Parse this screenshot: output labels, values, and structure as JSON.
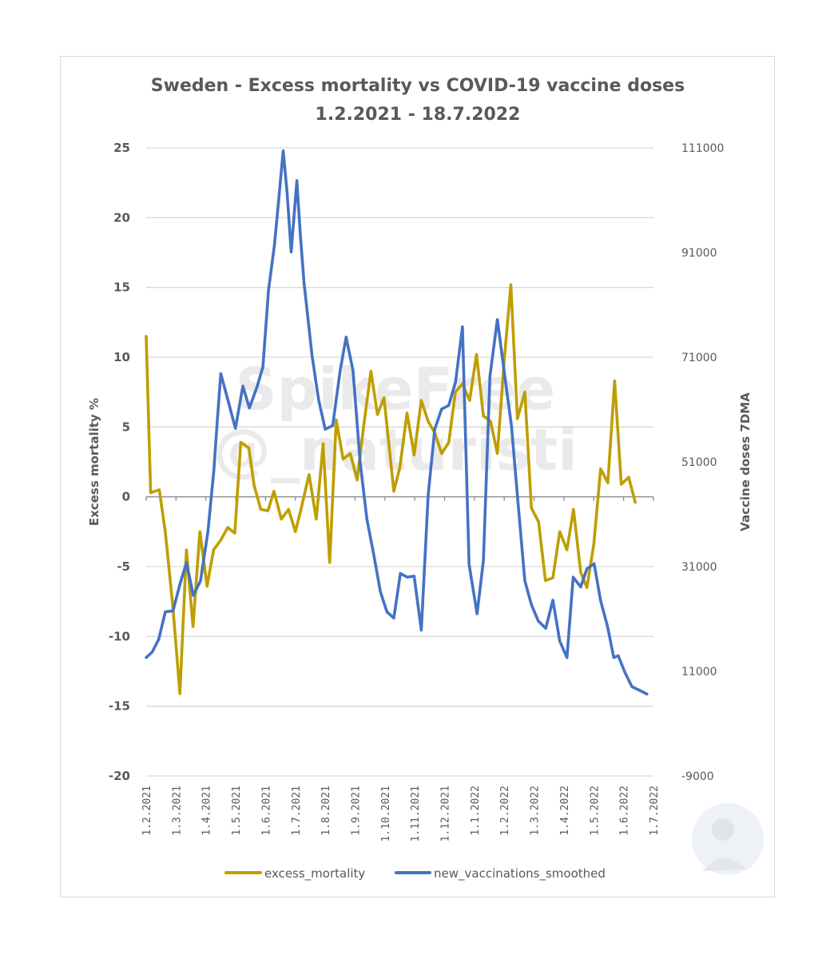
{
  "chart_data": {
    "type": "line",
    "title": [
      "Sweden - Excess mortality vs  COVID-19 vaccine doses",
      "1.2.2021 - 18.7.2022"
    ],
    "xlabel": "",
    "x_unit": "months since 1.2.2021",
    "xlim": [
      0,
      17
    ],
    "x_tick_labels": [
      "1.2.2021",
      "1.3.2021",
      "1.4.2021",
      "1.5.2021",
      "1.6.2021",
      "1.7.2021",
      "1.8.2021",
      "1.9.2021",
      "1.10.2021",
      "1.11.2021",
      "1.12.2021",
      "1.1.2022",
      "1.2.2022",
      "1.3.2022",
      "1.4.2022",
      "1.5.2022",
      "1.6.2022",
      "1.7.2022"
    ],
    "ylabel_left": "Excess mortality %",
    "ylim_left": [
      -20,
      25
    ],
    "y_ticks_left": [
      "25",
      "20",
      "15",
      "10",
      "5",
      "0",
      "-5",
      "-10",
      "-15",
      "-20"
    ],
    "ylabel_right": "Vaccine doses 7DMA",
    "ylim_right": [
      -9000,
      111000
    ],
    "y_ticks_right": [
      "111000",
      "91000",
      "71000",
      "51000",
      "31000",
      "11000",
      "-9000"
    ],
    "grid": true,
    "legend_position": "bottom",
    "watermark": [
      "SpikeFree",
      "@_naturisti"
    ],
    "colors": {
      "excess_mortality": "#BF9E00",
      "new_vaccinations_smoothed": "#4472C4"
    },
    "series": [
      {
        "name": "excess_mortality",
        "axis": "left",
        "x": [
          0,
          0.15,
          0.44,
          0.64,
          0.9,
          1.13,
          1.35,
          1.57,
          1.8,
          2.04,
          2.26,
          2.5,
          2.73,
          2.97,
          3.17,
          3.44,
          3.62,
          3.84,
          4.08,
          4.28,
          4.53,
          4.77,
          5.0,
          5.2,
          5.46,
          5.7,
          5.93,
          6.15,
          6.37,
          6.6,
          6.84,
          7.07,
          7.29,
          7.53,
          7.75,
          7.97,
          8.3,
          8.5,
          8.74,
          8.98,
          9.22,
          9.45,
          9.67,
          9.9,
          10.14,
          10.36,
          10.6,
          10.84,
          11.07,
          11.3,
          11.54,
          11.77,
          12.0,
          12.22,
          12.44,
          12.69,
          12.91,
          13.15,
          13.38,
          13.63,
          13.86,
          14.1,
          14.32,
          14.56,
          14.77,
          15.0,
          15.23,
          15.47,
          15.7,
          15.92,
          16.17,
          16.39
        ],
        "values": [
          11.5,
          0.3,
          0.5,
          -2.5,
          -8,
          -14.1,
          -3.8,
          -9.3,
          -2.5,
          -6.4,
          -3.8,
          -3.1,
          -2.2,
          -2.6,
          3.9,
          3.5,
          0.8,
          -0.9,
          -1.0,
          0.4,
          -1.6,
          -0.9,
          -2.5,
          -0.8,
          1.6,
          -1.6,
          3.8,
          -4.7,
          5.5,
          2.7,
          3.1,
          1.2,
          5.1,
          9.0,
          5.9,
          7.1,
          0.4,
          2.1,
          6.0,
          3.0,
          6.9,
          5.4,
          4.6,
          3.1,
          3.9,
          7.5,
          8.1,
          6.9,
          10.2,
          5.8,
          5.4,
          3.1,
          9.8,
          15.2,
          5.6,
          7.5,
          -0.8,
          -1.8,
          -6.0,
          -5.8,
          -2.5,
          -3.8,
          -0.9,
          -5.4,
          -6.5,
          -3.4,
          2.0,
          1.0,
          8.3,
          0.9,
          1.4,
          -0.4
        ]
      },
      {
        "name": "new_vaccinations_smoothed",
        "axis": "right",
        "x": [
          0,
          0.2,
          0.42,
          0.64,
          0.9,
          1.13,
          1.35,
          1.58,
          1.82,
          2.07,
          2.27,
          2.38,
          2.5,
          2.77,
          2.99,
          3.24,
          3.46,
          3.71,
          3.91,
          4.1,
          4.3,
          4.41,
          4.59,
          4.72,
          4.86,
          5.05,
          5.16,
          5.29,
          5.56,
          5.78,
          6.0,
          6.25,
          6.5,
          6.7,
          6.93,
          7.17,
          7.4,
          7.62,
          7.85,
          8.07,
          8.3,
          8.52,
          8.75,
          8.98,
          9.22,
          9.45,
          9.67,
          9.9,
          10.14,
          10.37,
          10.6,
          10.82,
          11.09,
          11.3,
          11.52,
          11.77,
          12.01,
          12.24,
          12.46,
          12.69,
          12.91,
          13.14,
          13.39,
          13.63,
          13.86,
          14.1,
          14.31,
          14.56,
          14.77,
          15.01,
          15.23,
          15.46,
          15.67,
          15.82,
          16.04,
          16.28,
          16.54,
          16.78
        ],
        "values": [
          13630,
          14680,
          17120,
          22350,
          22560,
          27590,
          31780,
          25500,
          28290,
          37700,
          49580,
          58650,
          67860,
          62140,
          57390,
          65480,
          61300,
          65280,
          69120,
          83780,
          92500,
          99130,
          110440,
          102620,
          91110,
          104720,
          94950,
          85180,
          71220,
          62840,
          57250,
          57950,
          68420,
          74840,
          68420,
          50970,
          39940,
          33520,
          26190,
          22350,
          21170,
          29680,
          28980,
          29190,
          18860,
          44690,
          57250,
          61090,
          61790,
          66320,
          76800,
          31430,
          22000,
          32120,
          67370,
          78190,
          67720,
          57950,
          43300,
          28290,
          23750,
          20610,
          19210,
          24590,
          16770,
          13630,
          28980,
          27100,
          30590,
          31570,
          24450,
          19560,
          13630,
          13980,
          10840,
          8050,
          7350,
          6650
        ]
      }
    ]
  }
}
